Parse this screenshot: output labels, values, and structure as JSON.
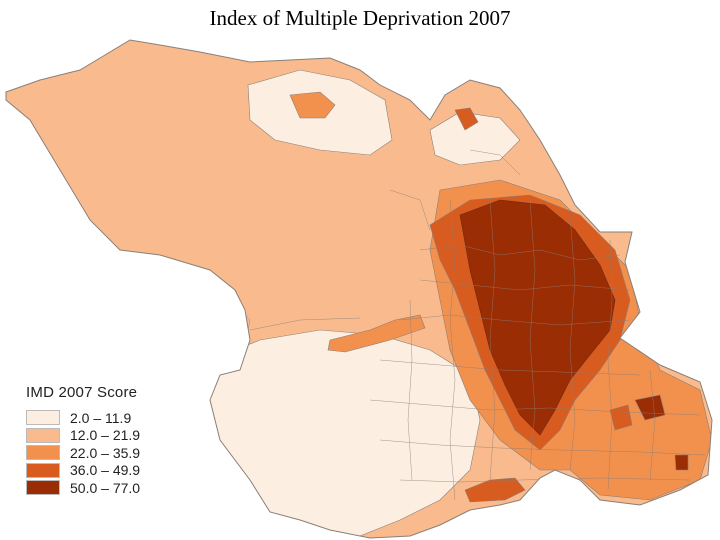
{
  "title": "Index of Multiple Deprivation 2007",
  "legend": {
    "title": "IMD 2007 Score",
    "classes": [
      {
        "label": "2.0 – 11.9",
        "color": "#fdeee2"
      },
      {
        "label": "12.0 – 21.9",
        "color": "#f9bb8d"
      },
      {
        "label": "22.0 – 35.9",
        "color": "#f2904e"
      },
      {
        "label": "36.0 – 49.9",
        "color": "#d85b1f"
      },
      {
        "label": "50.0 – 77.0",
        "color": "#9b2d05"
      }
    ]
  },
  "colors": {
    "border": "#8a7f78",
    "background": "#ffffff"
  }
}
